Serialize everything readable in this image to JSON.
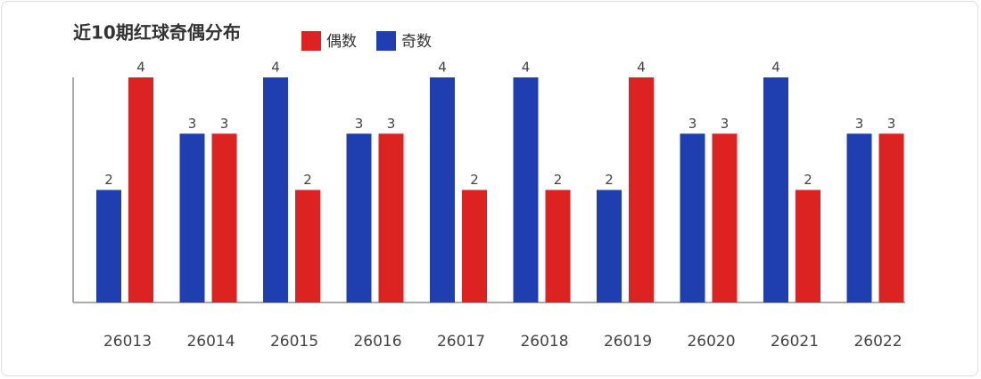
{
  "chart_data": {
    "type": "bar",
    "title": "近10期红球奇偶分布",
    "categories": [
      "26013",
      "26014",
      "26015",
      "26016",
      "26017",
      "26018",
      "26019",
      "26020",
      "26021",
      "26022"
    ],
    "series": [
      {
        "name": "偶数",
        "color": "#dd2222",
        "values": [
          4,
          3,
          2,
          3,
          2,
          2,
          4,
          3,
          2,
          3
        ]
      },
      {
        "name": "奇数",
        "color": "#1f3fb0",
        "values": [
          2,
          3,
          4,
          3,
          4,
          4,
          2,
          3,
          4,
          3
        ]
      }
    ],
    "ylim": [
      0,
      4
    ]
  }
}
